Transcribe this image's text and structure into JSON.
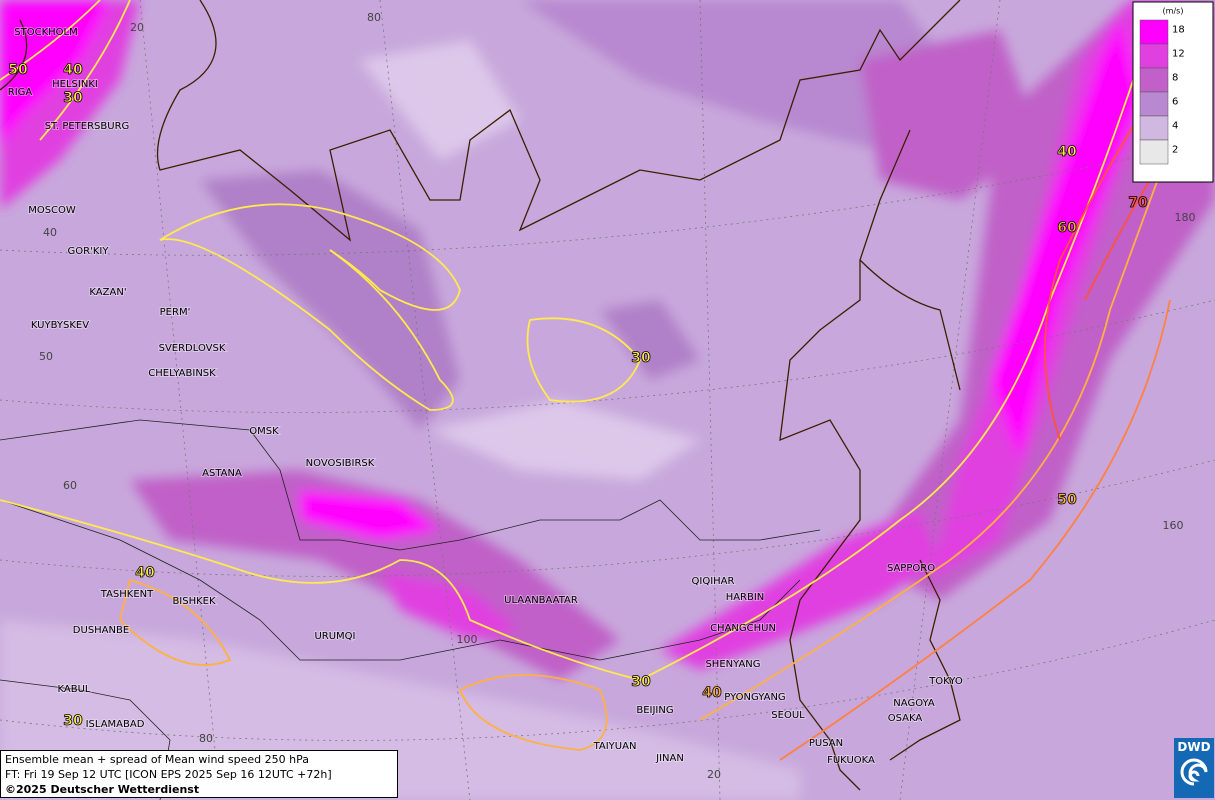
{
  "map": {
    "cities": [
      "STOCKHOLM",
      "HELSINKI",
      "RIGA",
      "ST. PETERSBURG",
      "MOSCOW",
      "GOR'KIY",
      "KAZAN'",
      "PERM'",
      "KUYBYSKEV",
      "SVERDLOVSK",
      "CHELYABINSK",
      "OMSK",
      "NOVOSIBIRSK",
      "ASTANA",
      "TASHKENT",
      "BISHKEK",
      "DUSHANBE",
      "URUMQI",
      "KABUL",
      "ISLAMABAD",
      "ULAANBAATAR",
      "QIQIHAR",
      "HARBIN",
      "CHANGCHUN",
      "SHENYANG",
      "PYONGYANG",
      "SEOUL",
      "BEIJING",
      "TAIYUAN",
      "JINAN",
      "PUSAN",
      "FUKUOKA",
      "SAPPORO",
      "TOKYO",
      "NAGOYA",
      "OSAKA"
    ],
    "contour_labels": [
      50,
      40,
      30,
      40,
      70,
      60,
      30,
      50,
      40,
      30,
      40,
      30
    ],
    "graticule_labels": [
      80,
      20,
      40,
      180,
      50,
      60,
      160,
      100,
      80,
      20
    ],
    "legend": {
      "unit": "(m/s)",
      "levels": [
        18,
        12,
        8,
        6,
        4,
        2
      ],
      "colors": [
        "#ff00ff",
        "#e040e0",
        "#c060c8",
        "#b888d0",
        "#d0b8e0",
        "#e8e8e8"
      ]
    },
    "info": {
      "lines": [
        "Ensemble mean + spread of Mean wind speed 250 hPa",
        "FT: Fri 19 Sep 12 UTC [ICON EPS 2025 Sep 16 12UTC +72h]",
        "©2025 Deutscher Wetterdienst"
      ]
    },
    "logo": "DWD"
  }
}
